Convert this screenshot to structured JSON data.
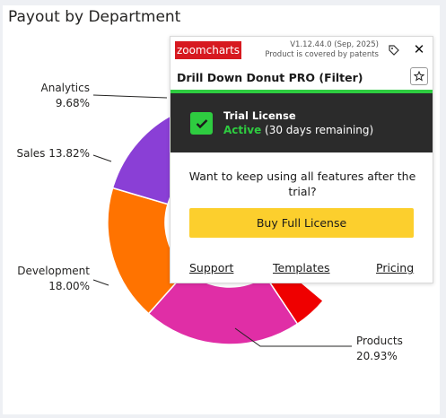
{
  "chart_data": {
    "type": "donut",
    "title": "Payout by Department",
    "slices": [
      {
        "name": "Products",
        "value": 20.93,
        "label": "Products\n20.93%",
        "color": "#e02ea6"
      },
      {
        "name": "Development",
        "value": 18.0,
        "label": "Development\n18.00%",
        "color": "#ff7300"
      },
      {
        "name": "Sales",
        "value": 13.82,
        "label": "Sales 13.82%",
        "color": "#8a3fd6"
      },
      {
        "name": "Analytics",
        "value": 9.68,
        "label": "Analytics\n9.68%",
        "color": "#f2c431"
      }
    ],
    "hidden_color": "#ef0000"
  },
  "popup": {
    "logo": "zoomcharts",
    "version": "V1.12.44.0 (Sep, 2025)",
    "patent": "Product is covered by patents",
    "close": "✕",
    "title": "Drill Down Donut PRO (Filter)",
    "license_title": "Trial License",
    "license_active": "Active",
    "license_remaining": " (30 days remaining)",
    "question": "Want to keep using all features after the trial?",
    "buy_label": "Buy Full License",
    "links": {
      "support": "Support",
      "templates": "Templates",
      "pricing": "Pricing"
    }
  }
}
